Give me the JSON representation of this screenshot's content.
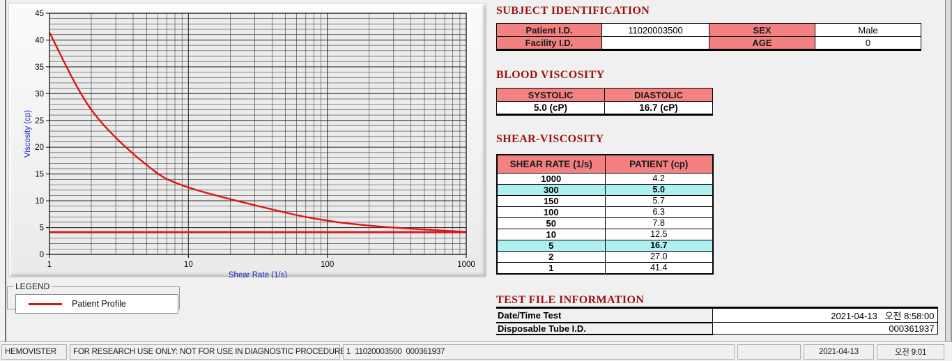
{
  "colors": {
    "header_pink": "#F48181",
    "highlight_cyan": "#AEEFEF",
    "title_red": "#9B1111",
    "curve_red": "#DE1515",
    "legend_line_red": "#B12222",
    "axis_blue": "#2121C2",
    "grid_line": "#2B2B2B",
    "plot_bg": "#EBEBEB"
  },
  "sections": {
    "subject": {
      "title": "SUBJECT IDENTIFICATION",
      "rows": [
        {
          "l1": "Patient I.D.",
          "v1": "11020003500",
          "l2": "SEX",
          "v2": "Male"
        },
        {
          "l1": "Facility I.D.",
          "v1": "",
          "l2": "AGE",
          "v2": "0"
        }
      ]
    },
    "blood": {
      "title": "BLOOD VISCOSITY",
      "headers": [
        "SYSTOLIC",
        "DIASTOLIC"
      ],
      "values": [
        "5.0 (cP)",
        "16.7 (cP)"
      ]
    },
    "shear": {
      "title": "SHEAR-VISCOSITY",
      "headers": [
        "SHEAR RATE (1/s)",
        "PATIENT (cp)"
      ],
      "rows": [
        {
          "cells": [
            "1000",
            "4.2"
          ],
          "hl": false
        },
        {
          "cells": [
            "300",
            "5.0"
          ],
          "hl": true
        },
        {
          "cells": [
            "150",
            "5.7"
          ],
          "hl": false
        },
        {
          "cells": [
            "100",
            "6.3"
          ],
          "hl": false
        },
        {
          "cells": [
            "50",
            "7.8"
          ],
          "hl": false
        },
        {
          "cells": [
            "10",
            "12.5"
          ],
          "hl": false
        },
        {
          "cells": [
            "5",
            "16.7"
          ],
          "hl": true
        },
        {
          "cells": [
            "2",
            "27.0"
          ],
          "hl": false
        },
        {
          "cells": [
            "1",
            "41.4"
          ],
          "hl": false
        }
      ]
    },
    "testfile": {
      "title": "TEST FILE INFORMATION",
      "rows": [
        {
          "label": "Date/Time Test",
          "value": "2021-04-13   오전 8:58:00"
        },
        {
          "label": "Disposable Tube I.D.",
          "value": "000361937"
        }
      ]
    }
  },
  "legend": {
    "box_label": "LEGEND",
    "series_label": "Patient Profile"
  },
  "statusbar": {
    "panels": [
      "HEMOVISTER",
      "FOR RESEARCH USE ONLY: NOT FOR USE IN DIAGNOSTIC PROCEDURES",
      "1  11020003500  000361937",
      "",
      "2021-04-13",
      "오전 9:01"
    ]
  },
  "chart_data": {
    "type": "line",
    "x_scale": "log",
    "xlabel": "Shear Rate (1/s)",
    "ylabel": "Viscosity (cp)",
    "xlim": [
      1,
      1000
    ],
    "ylim": [
      0,
      45
    ],
    "x_ticks": [
      1,
      10,
      100,
      1000
    ],
    "y_ticks": [
      0,
      5,
      10,
      15,
      20,
      25,
      30,
      35,
      40,
      45
    ],
    "grid": "major-and-minor",
    "legend_position": "below-left",
    "series": [
      {
        "name": "Patient Profile",
        "color": "#DE1515",
        "x": [
          1,
          2,
          5,
          10,
          50,
          100,
          150,
          300,
          1000
        ],
        "y": [
          41.4,
          27.0,
          16.7,
          12.5,
          7.8,
          6.3,
          5.7,
          5.0,
          4.2
        ]
      },
      {
        "type": "hline",
        "y": 4.15,
        "color": "#DE1515"
      }
    ]
  }
}
